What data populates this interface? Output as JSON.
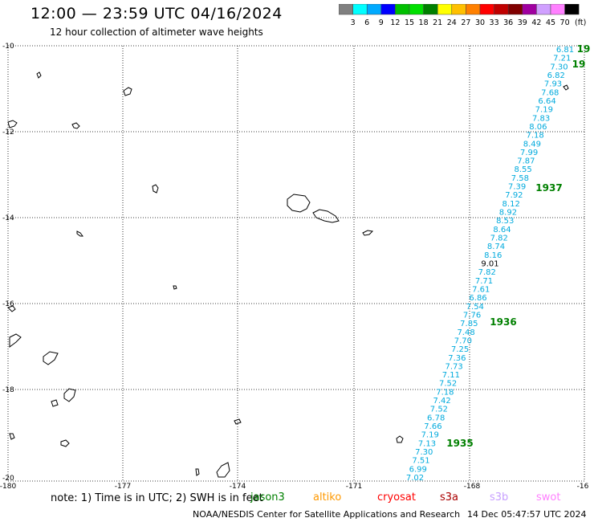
{
  "header": {
    "title": "12:00 — 23:59 UTC 04/16/2024",
    "subtitle": "12 hour collection of altimeter wave heights"
  },
  "colorbar": {
    "unit": "(ft)",
    "colors": [
      "#808080",
      "#00ffff",
      "#00aaff",
      "#0000ff",
      "#00c000",
      "#00e000",
      "#008000",
      "#ffff00",
      "#ffc000",
      "#ff8000",
      "#ff0000",
      "#c00000",
      "#800000",
      "#a000a0",
      "#d0a0ff",
      "#ff80ff",
      "#000000"
    ],
    "labels": [
      "3",
      "6",
      "9",
      "12",
      "15",
      "18",
      "21",
      "24",
      "27",
      "30",
      "33",
      "36",
      "39",
      "42",
      "45",
      "70"
    ]
  },
  "map": {
    "lat_labels": [
      "-10",
      "-12",
      "-14",
      "-16",
      "-18",
      "-20"
    ],
    "lon_labels": [
      "-180",
      "-177",
      "-174",
      "-171",
      "-168",
      "-16"
    ],
    "color_track": "#00aadd",
    "color_pass": "#008000"
  },
  "track": [
    {
      "v": "6.81"
    },
    {
      "v": "7.21"
    },
    {
      "v": "7.30"
    },
    {
      "v": "6.82"
    },
    {
      "v": "7.93"
    },
    {
      "v": "7.68"
    },
    {
      "v": "6.64"
    },
    {
      "v": "7.19"
    },
    {
      "v": "7.83"
    },
    {
      "v": "8.06"
    },
    {
      "v": "7.18"
    },
    {
      "v": "8.49"
    },
    {
      "v": "7.99"
    },
    {
      "v": "7.87"
    },
    {
      "v": "8.55"
    },
    {
      "v": "7.58"
    },
    {
      "v": "7.39"
    },
    {
      "v": "7.92"
    },
    {
      "v": "8.12"
    },
    {
      "v": "8.92"
    },
    {
      "v": "8.53"
    },
    {
      "v": "8.64"
    },
    {
      "v": "7.82"
    },
    {
      "v": "8.74"
    },
    {
      "v": "8.16"
    },
    {
      "v": "9.01",
      "dark": true
    },
    {
      "v": "7.82"
    },
    {
      "v": "7.71"
    },
    {
      "v": "7.61"
    },
    {
      "v": "6.86"
    },
    {
      "v": "7.54"
    },
    {
      "v": "7.76"
    },
    {
      "v": "7.85"
    },
    {
      "v": "7.48"
    },
    {
      "v": "7.70"
    },
    {
      "v": "7.25"
    },
    {
      "v": "7.36"
    },
    {
      "v": "7.73"
    },
    {
      "v": "7.11"
    },
    {
      "v": "7.52"
    },
    {
      "v": "7.18"
    },
    {
      "v": "7.42"
    },
    {
      "v": "7.52"
    },
    {
      "v": "6.78"
    },
    {
      "v": "7.66"
    },
    {
      "v": "7.19"
    },
    {
      "v": "7.13"
    },
    {
      "v": "7.30"
    },
    {
      "v": "7.51"
    },
    {
      "v": "6.99"
    },
    {
      "v": "7.02"
    }
  ],
  "passes": [
    "19",
    "19",
    "1937",
    "1936",
    "1935"
  ],
  "footer": {
    "note": "note:  1) Time is in UTC;  2) SWH is in feet",
    "missions": [
      {
        "name": "jason3",
        "color": "#008000"
      },
      {
        "name": "altiko",
        "color": "#ff9900"
      },
      {
        "name": "cryosat",
        "color": "#ff0000"
      },
      {
        "name": "s3a",
        "color": "#aa0000"
      },
      {
        "name": "s3b",
        "color": "#c8a0ff"
      },
      {
        "name": "swot",
        "color": "#ff80ff"
      }
    ],
    "credit": "NOAA/NESDIS Center for Satellite Applications and Research",
    "timestamp": "14 Dec 05:47:57 UTC 2024"
  }
}
